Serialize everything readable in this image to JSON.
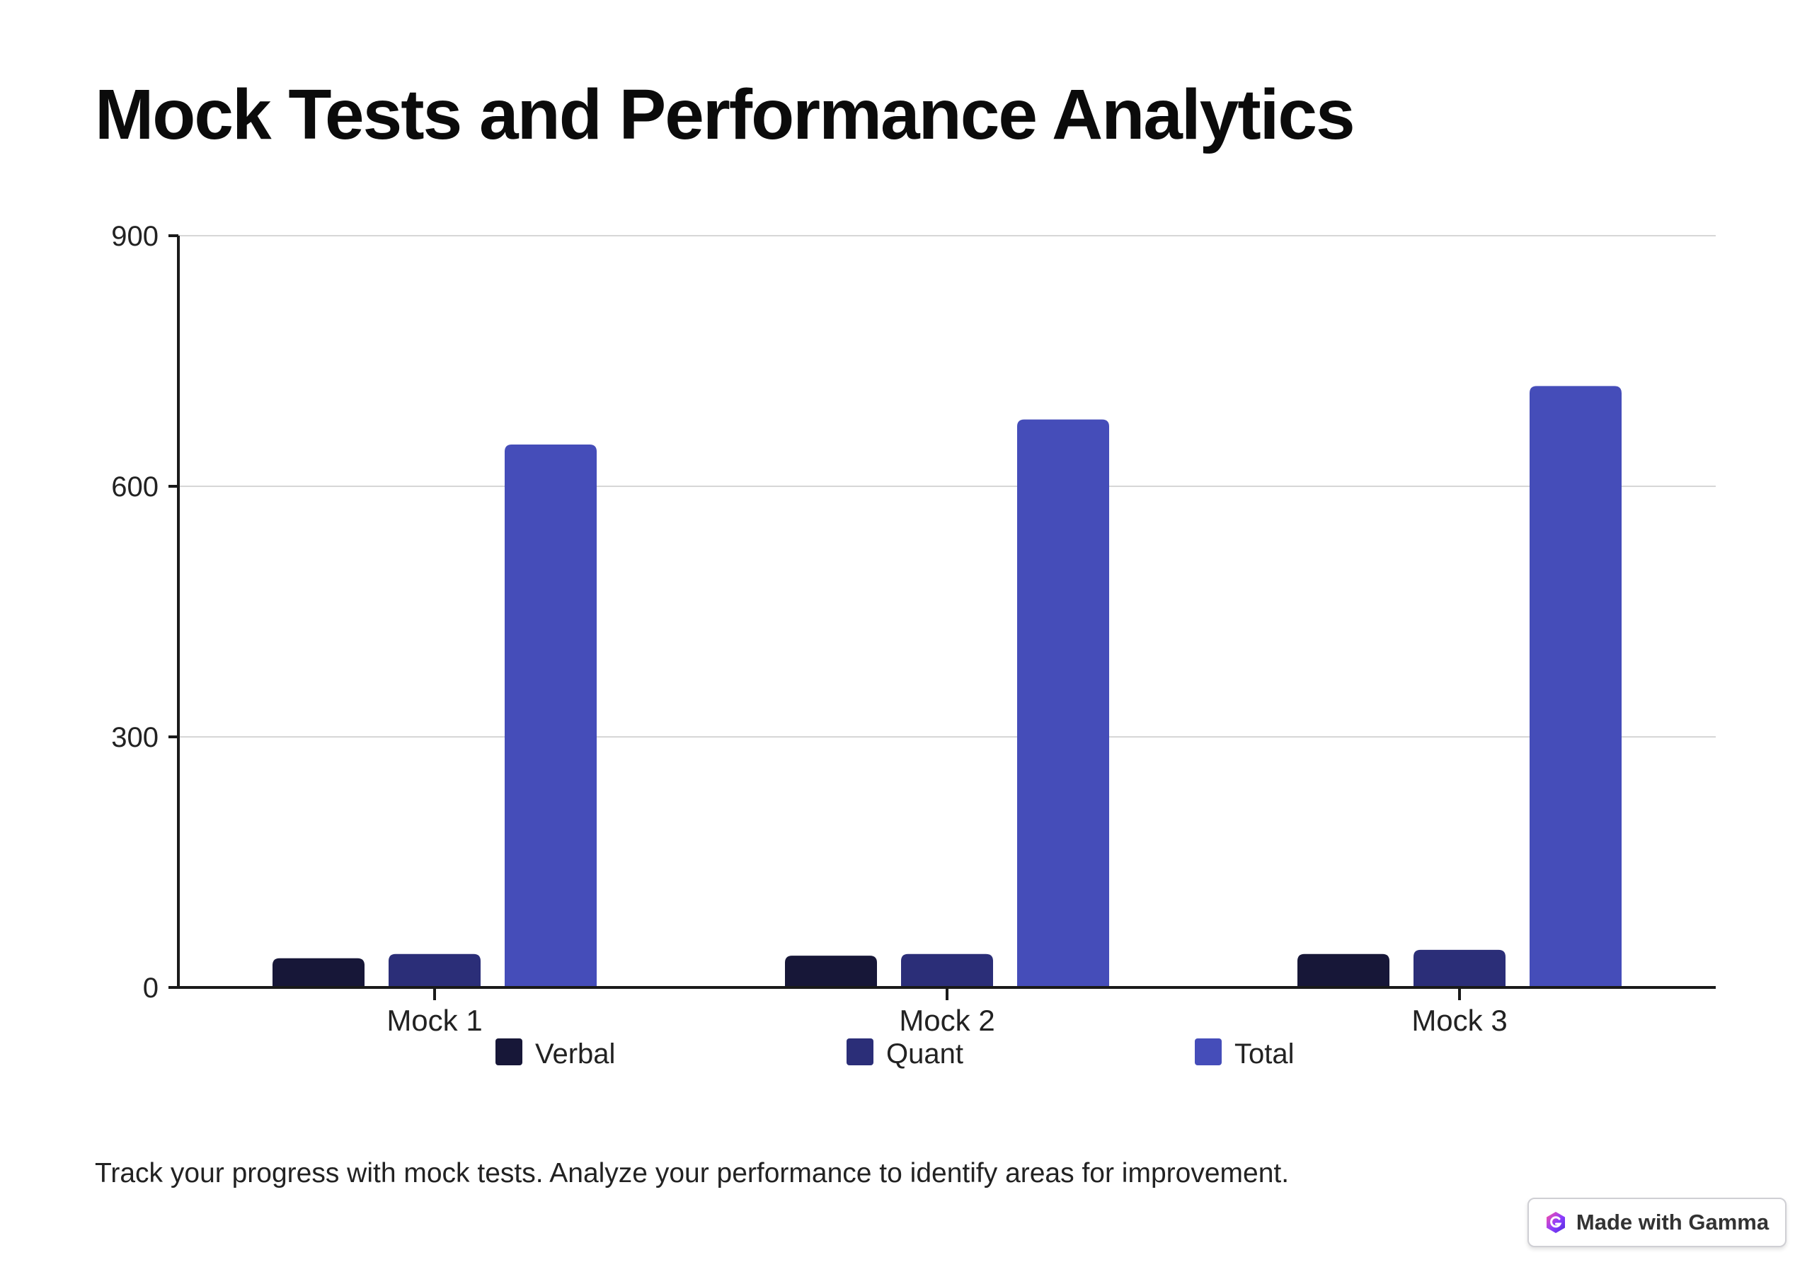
{
  "page": {
    "title": "Mock Tests and Performance Analytics",
    "caption": "Track your progress with mock tests. Analyze your performance to identify areas for improvement."
  },
  "badge": {
    "label": "Made with Gamma",
    "icon": "gamma-logo-icon"
  },
  "colors": {
    "verbal": "#171738",
    "quant": "#2b2e78",
    "total": "#454db9",
    "axis": "#1a1a1a",
    "grid": "#d6d6d6"
  },
  "chart_data": {
    "type": "bar",
    "categories": [
      "Mock 1",
      "Mock 2",
      "Mock 3"
    ],
    "series": [
      {
        "name": "Verbal",
        "values": [
          35,
          38,
          40
        ],
        "color": "#171738"
      },
      {
        "name": "Quant",
        "values": [
          40,
          40,
          45
        ],
        "color": "#2b2e78"
      },
      {
        "name": "Total",
        "values": [
          650,
          680,
          720
        ],
        "color": "#454db9"
      }
    ],
    "ylim": [
      0,
      900
    ],
    "yticks": [
      0,
      300,
      600,
      900
    ],
    "grid": true,
    "legend_position": "bottom"
  }
}
